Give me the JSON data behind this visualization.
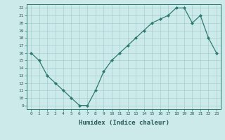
{
  "x": [
    0,
    1,
    2,
    3,
    4,
    5,
    6,
    7,
    8,
    9,
    10,
    11,
    12,
    13,
    14,
    15,
    16,
    17,
    18,
    19,
    20,
    21,
    22,
    23
  ],
  "y": [
    16,
    15,
    13,
    12,
    11,
    10,
    9,
    9,
    11,
    13.5,
    15,
    16,
    17,
    18,
    19,
    20,
    20.5,
    21,
    22,
    22,
    20,
    21,
    18,
    16
  ],
  "xlabel": "Humidex (Indice chaleur)",
  "xlim": [
    -0.5,
    23.5
  ],
  "ylim": [
    8.5,
    22.5
  ],
  "yticks": [
    9,
    10,
    11,
    12,
    13,
    14,
    15,
    16,
    17,
    18,
    19,
    20,
    21,
    22
  ],
  "xticks": [
    0,
    1,
    2,
    3,
    4,
    5,
    6,
    7,
    8,
    9,
    10,
    11,
    12,
    13,
    14,
    15,
    16,
    17,
    18,
    19,
    20,
    21,
    22,
    23
  ],
  "line_color": "#2d7a6e",
  "bg_color": "#cceaea",
  "grid_color": "#9fc8c8",
  "text_color": "#2d5a5a"
}
